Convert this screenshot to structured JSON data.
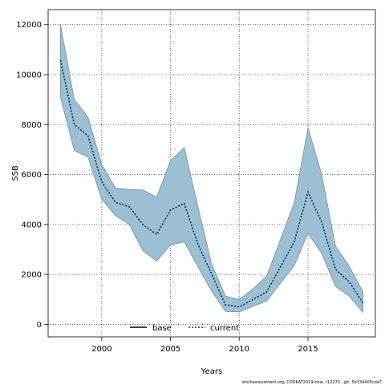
{
  "chart_data": {
    "type": "line",
    "title": "",
    "xlabel": "Years",
    "ylabel": "SSB",
    "xlim": [
      1996.1,
      2019.9
    ],
    "ylim": [
      -500,
      12600
    ],
    "xticks": [
      2000,
      2005,
      2010,
      2015
    ],
    "yticks": [
      0,
      2000,
      4000,
      6000,
      8000,
      10000,
      12000
    ],
    "grid": true,
    "legend_position": "bottom-center",
    "band": {
      "x": [
        1997,
        1998,
        1999,
        2000,
        2001,
        2002,
        2003,
        2004,
        2005,
        2006,
        2007,
        2008,
        2009,
        2010,
        2011,
        2012,
        2013,
        2014,
        2015,
        2016,
        2017,
        2018,
        2019
      ],
      "upper": [
        12000,
        9000,
        8300,
        6400,
        5450,
        5400,
        5380,
        5100,
        6560,
        7080,
        4700,
        2400,
        1130,
        1000,
        1420,
        1940,
        3400,
        4880,
        7870,
        6000,
        3130,
        2330,
        1300
      ],
      "lower": [
        9100,
        6960,
        6700,
        5000,
        4350,
        4000,
        2940,
        2540,
        3180,
        3300,
        2300,
        1320,
        520,
        500,
        720,
        940,
        1650,
        2350,
        3650,
        2840,
        1520,
        1130,
        480
      ],
      "fill_color": "#9cbfd3",
      "edge_color": "#7a8e99"
    },
    "series": [
      {
        "name": "base",
        "style": "solid",
        "color": "#000000",
        "x": [],
        "values": []
      },
      {
        "name": "current",
        "style": "dotted",
        "color": "#0a2a50",
        "x": [
          1997,
          1998,
          1999,
          2000,
          2001,
          2002,
          2003,
          2004,
          2005,
          2006,
          2007,
          2008,
          2009,
          2010,
          2011,
          2012,
          2013,
          2014,
          2015,
          2016,
          2017,
          2018,
          2019
        ],
        "values": [
          10580,
          8000,
          7550,
          5700,
          4880,
          4710,
          3990,
          3600,
          4580,
          4840,
          3200,
          2000,
          780,
          700,
          1000,
          1300,
          2300,
          3300,
          5300,
          4080,
          2200,
          1700,
          850
        ]
      }
    ],
    "footer": "stockassessment.org, CODKAT2019-new, r12270 , git: 5b334405cda7"
  }
}
